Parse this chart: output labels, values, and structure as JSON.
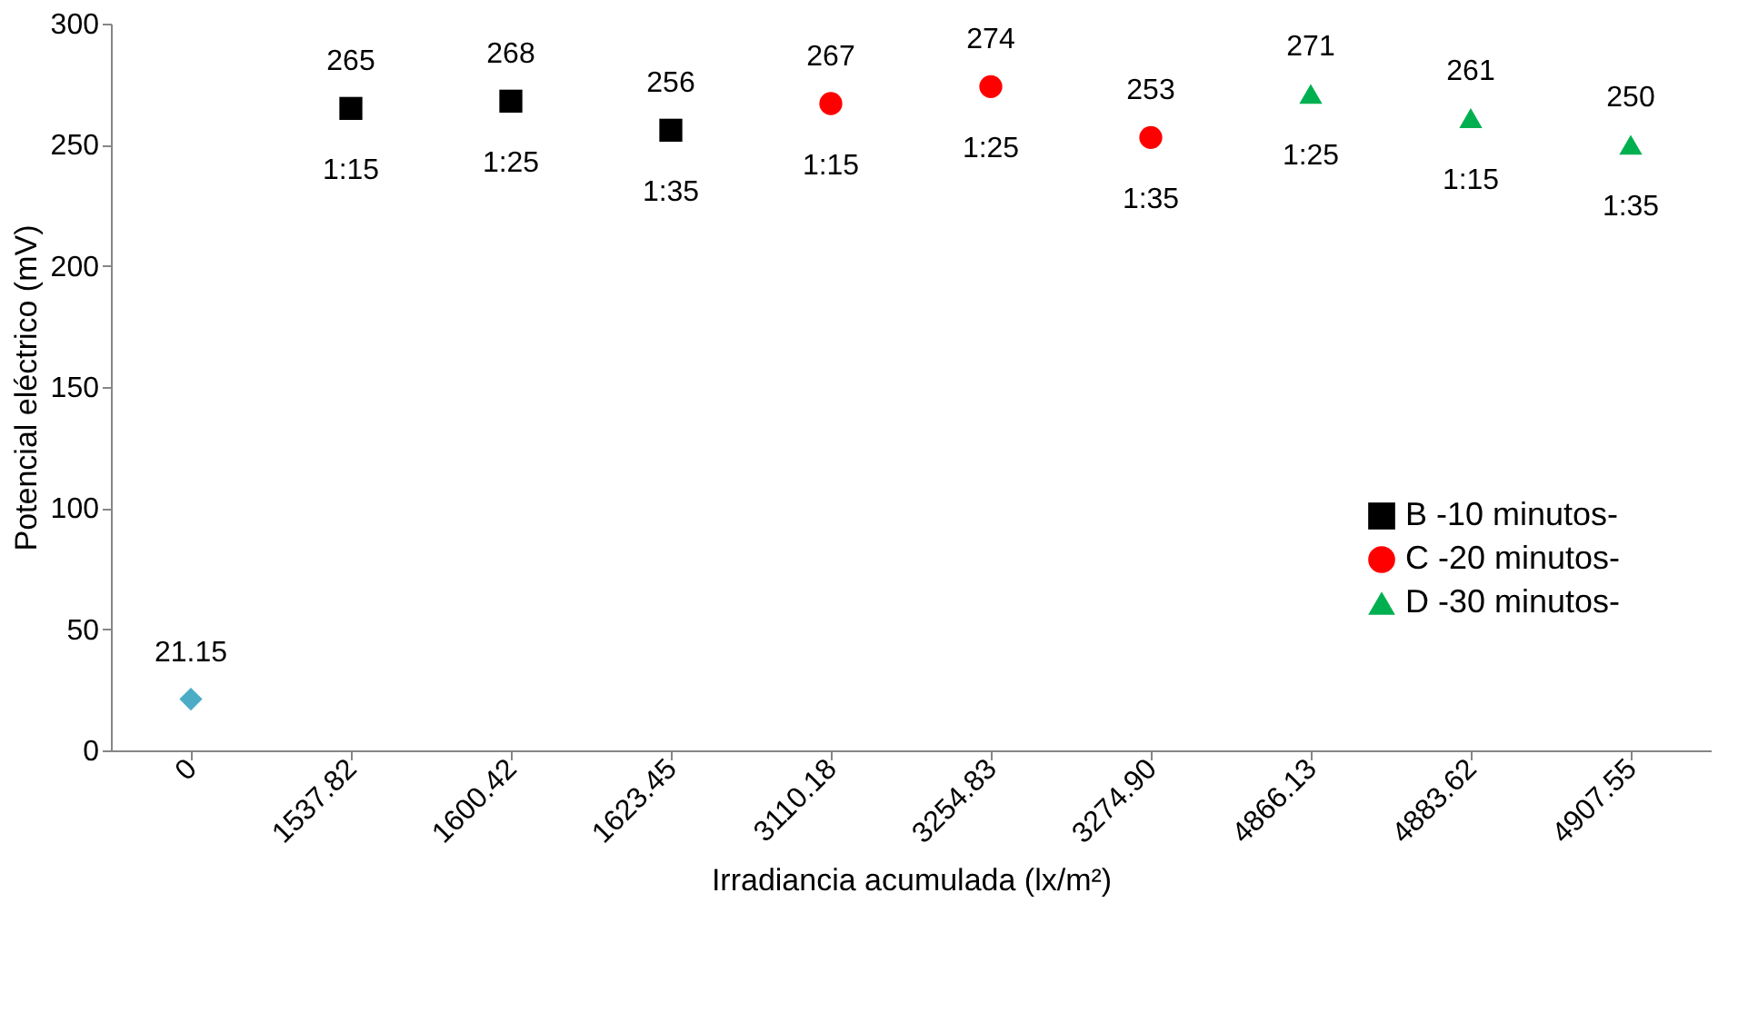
{
  "chart_data": {
    "type": "scatter",
    "xlabel": "Irradiancia acumulada (lx/m²)",
    "ylabel": "Potencial eléctrico (mV)",
    "categories": [
      "0",
      "1537.82",
      "1600.42",
      "1623.45",
      "3110.18",
      "3254.83",
      "3274.90",
      "4866.13",
      "4883.62",
      "4907.55"
    ],
    "series": [
      {
        "name": "B -10 minutos-",
        "color": "#000000",
        "marker": "square",
        "values": [
          null,
          265,
          268,
          256,
          null,
          null,
          null,
          null,
          null,
          null
        ]
      },
      {
        "name": "C -20 minutos-",
        "color": "#ff0000",
        "marker": "circle",
        "values": [
          null,
          null,
          null,
          null,
          267,
          274,
          253,
          null,
          null,
          null
        ]
      },
      {
        "name": "D -30 minutos-",
        "color": "#00b050",
        "marker": "triangle",
        "values": [
          null,
          null,
          null,
          null,
          null,
          null,
          null,
          271,
          261,
          250
        ]
      },
      {
        "color": "#4bacc6",
        "marker": "diamond",
        "values": [
          21.15,
          null,
          null,
          null,
          null,
          null,
          null,
          null,
          null,
          null
        ]
      }
    ],
    "ylim": [
      0,
      300
    ],
    "yticks": [
      0,
      50,
      100,
      150,
      200,
      250,
      300
    ],
    "grid": false,
    "legend": "right",
    "data_labels": true,
    "annotations": [
      {
        "text": "1:15",
        "x": "1537.82",
        "y": 265
      },
      {
        "text": "1:25",
        "x": "1600.42",
        "y": 268
      },
      {
        "text": "1:35",
        "x": "1623.45",
        "y": 256
      },
      {
        "text": "1:15",
        "x": "3110.18",
        "y": 267
      },
      {
        "text": "1:25",
        "x": "3254.83",
        "y": 274
      },
      {
        "text": "1:35",
        "x": "3274.90",
        "y": 253
      },
      {
        "text": "1:25",
        "x": "4866.13",
        "y": 271
      },
      {
        "text": "1:15",
        "x": "4883.62",
        "y": 261
      },
      {
        "text": "1:35",
        "x": "4907.55",
        "y": 250
      }
    ]
  }
}
